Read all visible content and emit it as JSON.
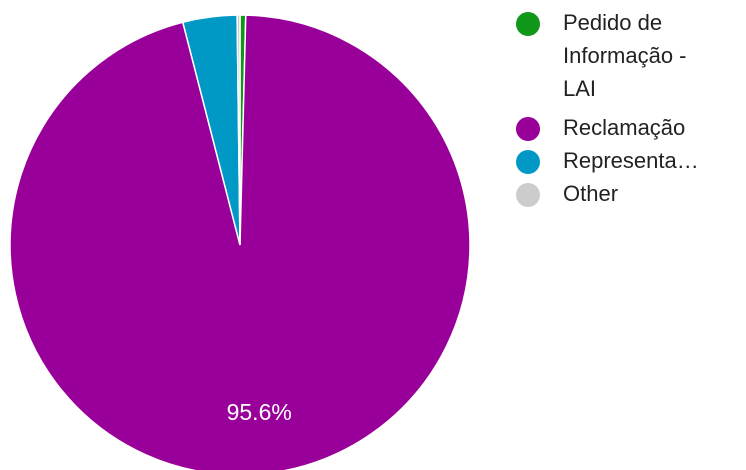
{
  "chart_data": {
    "type": "pie",
    "title": "",
    "slices": [
      {
        "label": "Pedido de Informação - LAI",
        "value": 0.4,
        "color": "#109618"
      },
      {
        "label": "Reclamação",
        "value": 95.6,
        "color": "#990099"
      },
      {
        "label": "Representa…",
        "value": 3.8,
        "color": "#0099c6"
      },
      {
        "label": "Other",
        "value": 0.2,
        "color": "#cccccc"
      }
    ],
    "data_labels": [
      {
        "slice": "Reclamação",
        "text": "95.6%"
      }
    ],
    "legend": {
      "position": "right",
      "entries": [
        {
          "lines": [
            "Pedido de",
            "Informação -",
            "LAI"
          ],
          "color": "#109618",
          "icon": "circle-marker"
        },
        {
          "lines": [
            "Reclamação"
          ],
          "color": "#990099",
          "icon": "circle-marker"
        },
        {
          "lines": [
            "Representa…"
          ],
          "color": "#0099c6",
          "icon": "circle-marker"
        },
        {
          "lines": [
            "Other"
          ],
          "color": "#cccccc",
          "icon": "circle-marker"
        }
      ]
    }
  }
}
